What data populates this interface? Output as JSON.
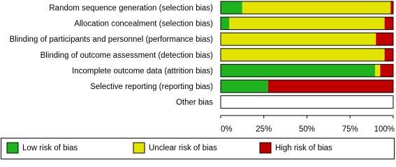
{
  "chart_data": {
    "type": "stacked_barh",
    "categories": [
      "Random sequence generation (selection bias)",
      "Allocation concealment (selection bias)",
      "Blinding of participants and personnel (performance bias)",
      "Blinding of outcome assessment (detection bias)",
      "Incomplete outcome data (attrition bias)",
      "Selective reporting (reporting bias)",
      "Other bias"
    ],
    "series": [
      {
        "name": "Low risk of bias",
        "color": "#1fb31f",
        "values": [
          12.5,
          5,
          0,
          0,
          89.5,
          27.5,
          0
        ]
      },
      {
        "name": "Unclear risk of bias",
        "color": "#e3e300",
        "values": [
          86,
          90,
          90,
          95,
          3,
          0,
          0
        ]
      },
      {
        "name": "High risk of bias",
        "color": "#c00000",
        "values": [
          1.5,
          5,
          10,
          5,
          7.5,
          72.5,
          0
        ]
      }
    ],
    "xlim": [
      0,
      100
    ],
    "xticks": [
      {
        "value": 0,
        "label": "0%"
      },
      {
        "value": 25,
        "label": "25%"
      },
      {
        "value": 50,
        "label": "50%"
      },
      {
        "value": 75,
        "label": "75%"
      },
      {
        "value": 100,
        "label": "100%"
      }
    ]
  }
}
